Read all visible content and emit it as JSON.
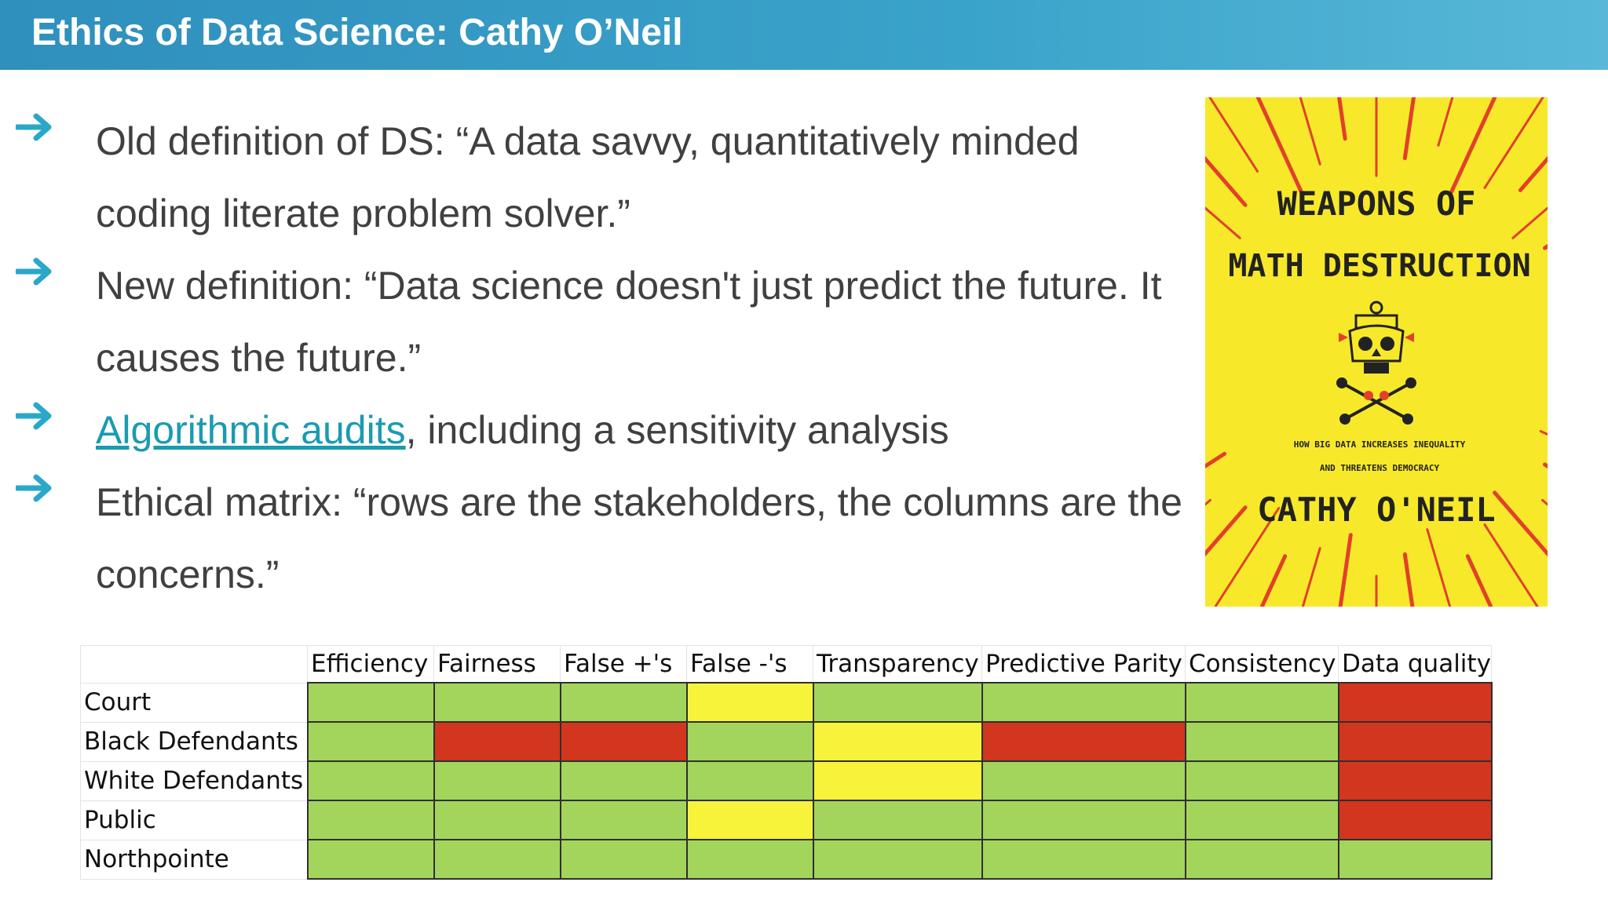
{
  "header": {
    "title": "Ethics of Data Science: Cathy O’Neil"
  },
  "bullets": [
    {
      "lines": [
        "Old definition of DS: “A data savvy, quantitatively minded",
        "coding literate problem solver.”"
      ]
    },
    {
      "lines": [
        "New definition: “Data science doesn't just predict the future. It",
        "causes the future.”"
      ]
    },
    {
      "link": "Algorithmic audits",
      "rest": ", including a sensitivity analysis"
    },
    {
      "lines": [
        "Ethical matrix: “rows are the stakeholders, the columns are the",
        "concerns.”"
      ]
    }
  ],
  "book": {
    "title_line1": "WEAPONS OF",
    "title_line2": "MATH DESTRUCTION",
    "subtitle_line1": "HOW BIG DATA INCREASES INEQUALITY",
    "subtitle_line2": "AND THREATENS DEMOCRACY",
    "author": "CATHY O'NEIL",
    "colors": {
      "background": "#f7e92a",
      "rays": "#e2402a",
      "text": "#222222"
    }
  },
  "matrix": {
    "columns": [
      "Efficiency",
      "Fairness",
      "False +'s",
      "False -'s",
      "Transparency",
      "Predictive Parity",
      "Consistency",
      "Data quality"
    ],
    "rows": [
      {
        "label": "Court",
        "cells": [
          "green",
          "green",
          "green",
          "yellow",
          "green",
          "green",
          "green",
          "red"
        ]
      },
      {
        "label": "Black Defendants",
        "cells": [
          "green",
          "red",
          "red",
          "green",
          "yellow",
          "red",
          "green",
          "red"
        ]
      },
      {
        "label": "White Defendants",
        "cells": [
          "green",
          "green",
          "green",
          "green",
          "yellow",
          "green",
          "green",
          "red"
        ]
      },
      {
        "label": "Public",
        "cells": [
          "green",
          "green",
          "green",
          "yellow",
          "green",
          "green",
          "green",
          "red"
        ]
      },
      {
        "label": "Northpointe",
        "cells": [
          "green",
          "green",
          "green",
          "green",
          "green",
          "green",
          "green",
          "green"
        ]
      }
    ],
    "colors": {
      "green": "#a3d55c",
      "yellow": "#f7f33a",
      "red": "#d2361e"
    }
  }
}
